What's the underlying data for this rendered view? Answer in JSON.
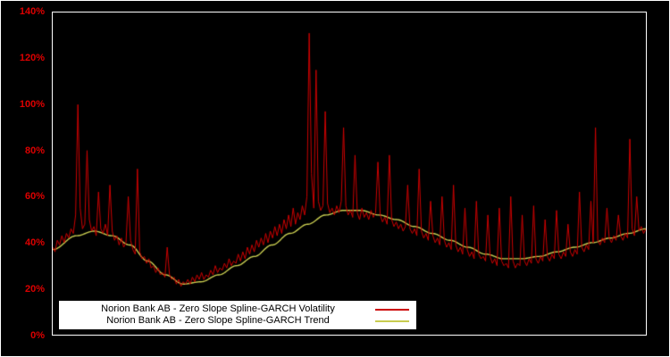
{
  "chart_data": {
    "type": "line",
    "title": "",
    "xlabel": "",
    "ylabel": "",
    "ylim": [
      0,
      140
    ],
    "yticks": [
      "0%",
      "20%",
      "40%",
      "60%",
      "80%",
      "100%",
      "120%",
      "140%"
    ],
    "grid": false,
    "background": "#000000",
    "frame_color": "#ffffff",
    "tick_label_color": "#dd0000",
    "legend_position": "bottom-left",
    "series": [
      {
        "name": "Norion Bank AB - Zero Slope Spline-GARCH Volatility",
        "color": "#cc0000",
        "unit": "%",
        "values": [
          38,
          36,
          41,
          39,
          43,
          40,
          44,
          42,
          46,
          44,
          52,
          100,
          55,
          46,
          48,
          80,
          50,
          45,
          47,
          43,
          62,
          46,
          44,
          48,
          43,
          65,
          45,
          41,
          43,
          39,
          42,
          38,
          40,
          60,
          41,
          37,
          35,
          72,
          36,
          33,
          34,
          31,
          33,
          29,
          30,
          27,
          29,
          26,
          27,
          25,
          38,
          26,
          24,
          25,
          22,
          24,
          21,
          23,
          22,
          24,
          22,
          25,
          23,
          26,
          24,
          27,
          24,
          26,
          25,
          28,
          26,
          30,
          27,
          29,
          28,
          31,
          29,
          33,
          30,
          32,
          31,
          35,
          32,
          36,
          33,
          38,
          35,
          39,
          36,
          41,
          38,
          42,
          39,
          44,
          40,
          45,
          42,
          47,
          43,
          48,
          44,
          50,
          46,
          52,
          47,
          55,
          48,
          53,
          50,
          56,
          52,
          60,
          131,
          70,
          55,
          115,
          58,
          54,
          56,
          97,
          57,
          53,
          55,
          52,
          56,
          53,
          58,
          90,
          56,
          52,
          54,
          51,
          78,
          53,
          50,
          55,
          51,
          53,
          50,
          54,
          51,
          53,
          75,
          52,
          49,
          51,
          48,
          78,
          50,
          47,
          49,
          46,
          48,
          45,
          47,
          65,
          46,
          44,
          46,
          43,
          72,
          45,
          42,
          44,
          41,
          58,
          43,
          40,
          42,
          39,
          60,
          41,
          38,
          40,
          37,
          65,
          39,
          36,
          38,
          35,
          55,
          37,
          34,
          36,
          33,
          58,
          35,
          33,
          34,
          32,
          52,
          34,
          31,
          33,
          30,
          55,
          32,
          30,
          31,
          29,
          60,
          32,
          29,
          31,
          30,
          52,
          32,
          30,
          33,
          31,
          56,
          33,
          31,
          34,
          32,
          50,
          34,
          32,
          35,
          33,
          54,
          35,
          33,
          36,
          34,
          48,
          36,
          34,
          37,
          35,
          62,
          38,
          36,
          39,
          37,
          58,
          40,
          90,
          41,
          39,
          42,
          40,
          55,
          42,
          40,
          43,
          41,
          52,
          43,
          41,
          44,
          42,
          85,
          46,
          43,
          60,
          45,
          47,
          44,
          46
        ]
      },
      {
        "name": "Norion Bank AB - Zero Slope Spline-GARCH Trend",
        "color": "#c8cc50",
        "unit": "%",
        "points": [
          [
            0.0,
            37
          ],
          [
            0.04,
            43
          ],
          [
            0.07,
            45
          ],
          [
            0.1,
            43
          ],
          [
            0.13,
            39
          ],
          [
            0.16,
            32
          ],
          [
            0.19,
            26
          ],
          [
            0.22,
            22
          ],
          [
            0.25,
            23
          ],
          [
            0.28,
            26
          ],
          [
            0.31,
            30
          ],
          [
            0.34,
            34
          ],
          [
            0.37,
            39
          ],
          [
            0.4,
            44
          ],
          [
            0.43,
            48
          ],
          [
            0.46,
            52
          ],
          [
            0.49,
            54
          ],
          [
            0.52,
            54
          ],
          [
            0.55,
            52
          ],
          [
            0.58,
            50
          ],
          [
            0.61,
            47
          ],
          [
            0.64,
            44
          ],
          [
            0.67,
            41
          ],
          [
            0.7,
            38
          ],
          [
            0.73,
            35
          ],
          [
            0.76,
            33
          ],
          [
            0.79,
            33
          ],
          [
            0.82,
            34
          ],
          [
            0.85,
            36
          ],
          [
            0.88,
            38
          ],
          [
            0.91,
            40
          ],
          [
            0.94,
            42
          ],
          [
            0.97,
            44
          ],
          [
            1.0,
            46
          ]
        ]
      }
    ]
  }
}
